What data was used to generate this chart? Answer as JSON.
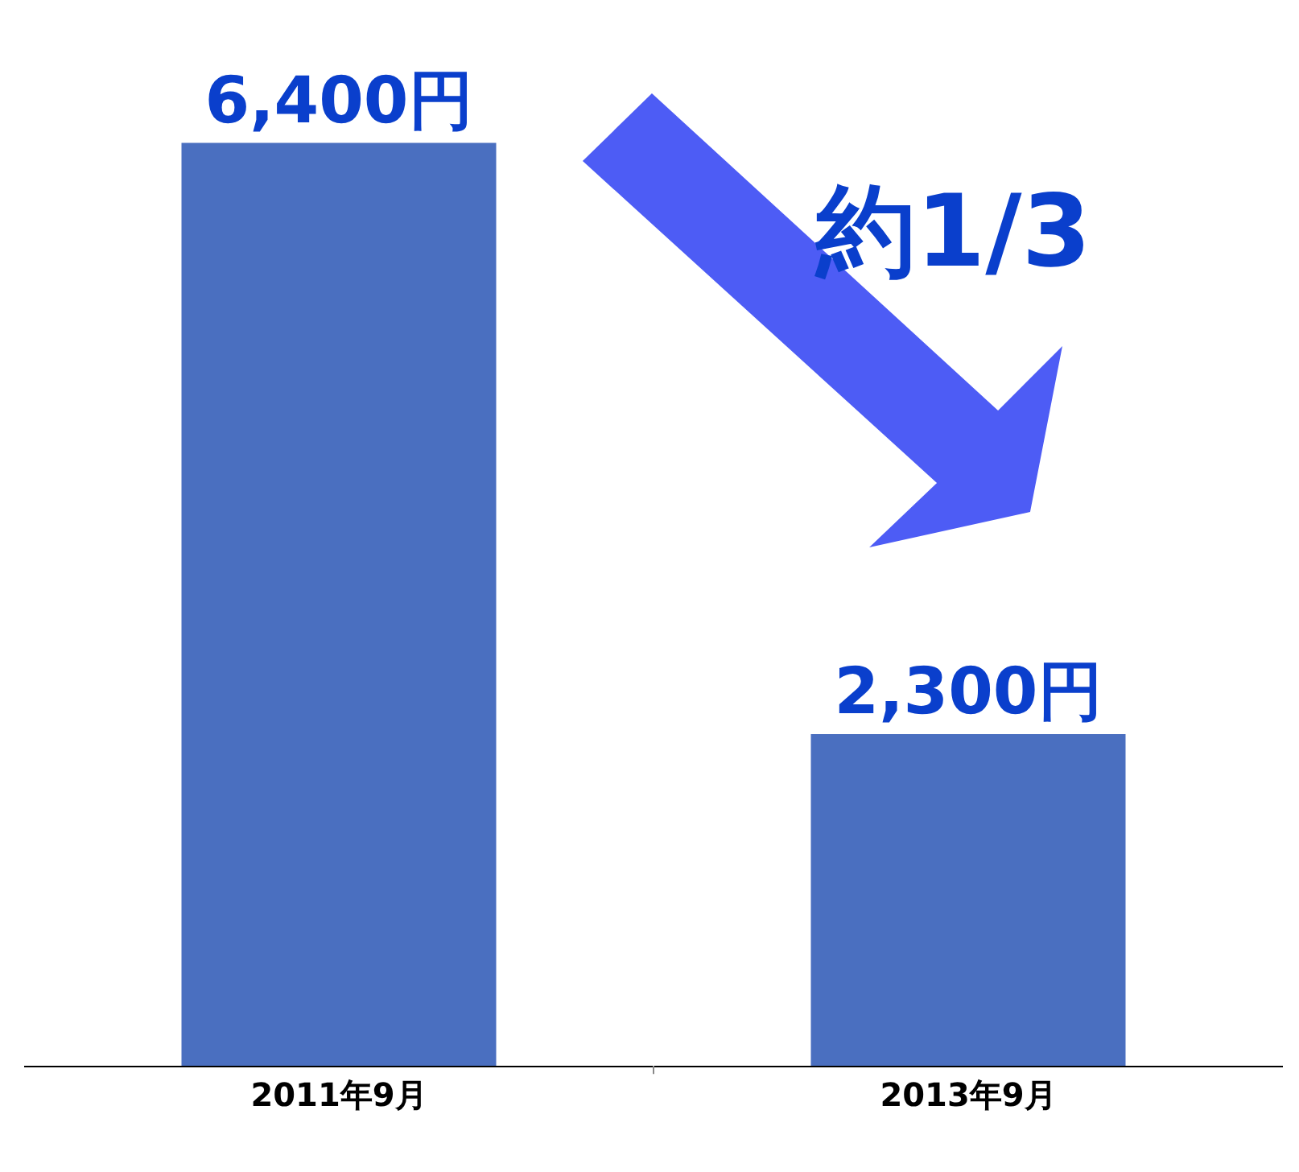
{
  "chart_data": {
    "type": "bar",
    "categories": [
      "2011年9月",
      "2013年9月"
    ],
    "values": [
      6400,
      2300
    ],
    "value_labels": [
      "6,400円",
      "2,300円"
    ],
    "colors": [
      "#4a6fc0",
      "#4a6fc0"
    ],
    "annotations": [
      "約1/3"
    ],
    "tick_labels": "x"
  }
}
